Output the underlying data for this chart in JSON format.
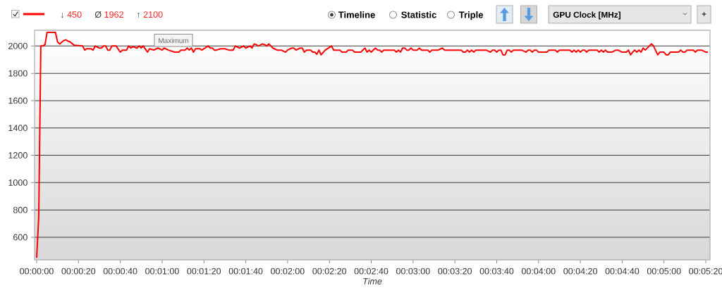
{
  "chart_data": {
    "type": "line",
    "title": "GPU Clock [MHz]",
    "xlabel": "Time",
    "annotations": [
      "↓ 450",
      "Ø 1962",
      "↑ 2100",
      "Timeline",
      "Statistic",
      "Triple",
      "+",
      "Maximum"
    ],
    "x": [
      0,
      1,
      2,
      3,
      4,
      5,
      9,
      10,
      11,
      13,
      14,
      15,
      16,
      18,
      22,
      23,
      24,
      26,
      27,
      28,
      30,
      31,
      32,
      33,
      34,
      35,
      36,
      38,
      40,
      41,
      43,
      44,
      45,
      46,
      48,
      49,
      50,
      51,
      53,
      54,
      56,
      58,
      60,
      61,
      63,
      66,
      68,
      69,
      71,
      72,
      73,
      74,
      75,
      76,
      78,
      79,
      80,
      82,
      83,
      84,
      85,
      86,
      88,
      90,
      92,
      94,
      95,
      97,
      99,
      100,
      102,
      103,
      104,
      105,
      106,
      108,
      109,
      110,
      111,
      113,
      115,
      117,
      119,
      120,
      122,
      123,
      124,
      126,
      127,
      128,
      129,
      131,
      132,
      133,
      134,
      135,
      136,
      138,
      141,
      142,
      145,
      146,
      148,
      149,
      151,
      152,
      155,
      157,
      158,
      159,
      160,
      162,
      163,
      164,
      165,
      166,
      171,
      172,
      173,
      174,
      175,
      176,
      177,
      178,
      179,
      180,
      182,
      183,
      184,
      187,
      188,
      189,
      192,
      194,
      195,
      203,
      204,
      205,
      206,
      207,
      208,
      209,
      210,
      215,
      217,
      218,
      219,
      220,
      221,
      222,
      223,
      224,
      225,
      226,
      227,
      228,
      232,
      234,
      235,
      236,
      237,
      238,
      239,
      240,
      244,
      245,
      248,
      249,
      250,
      255,
      256,
      257,
      258,
      259,
      260,
      261,
      262,
      263,
      264,
      268,
      269,
      270,
      271,
      272,
      273,
      275,
      277,
      278,
      280,
      282,
      283,
      284,
      285,
      286,
      287,
      288,
      289,
      290,
      291,
      294,
      295,
      297,
      298,
      300,
      301,
      302,
      303,
      307,
      308,
      309,
      310,
      311,
      314,
      315,
      316,
      318,
      320,
      321
    ],
    "series": [
      {
        "color": "#ff0000",
        "values": [
          450,
          750,
          2000,
          2000,
          2010,
          2100,
          2100,
          2030,
          2015,
          2040,
          2045,
          2035,
          2030,
          2005,
          2000,
          1970,
          1980,
          1980,
          1970,
          2000,
          1985,
          1985,
          2000,
          2000,
          1970,
          1970,
          2000,
          2000,
          1955,
          1970,
          1970,
          2000,
          1985,
          1995,
          1985,
          2000,
          1985,
          2000,
          1955,
          1980,
          1970,
          1985,
          1970,
          1985,
          1970,
          1955,
          1955,
          1970,
          1970,
          1985,
          1970,
          1985,
          1955,
          1980,
          1980,
          1970,
          1980,
          2000,
          1985,
          1985,
          1970,
          1970,
          1980,
          1980,
          1970,
          1970,
          2000,
          1985,
          2000,
          1985,
          2000,
          1985,
          2015,
          2010,
          2000,
          2015,
          2010,
          2000,
          2015,
          1985,
          1970,
          1970,
          1955,
          1970,
          1985,
          1985,
          1970,
          1985,
          1985,
          1955,
          1970,
          1970,
          1955,
          1955,
          1940,
          1970,
          1935,
          1970,
          2000,
          1970,
          1970,
          1955,
          1955,
          1970,
          1970,
          1955,
          1955,
          1985,
          1955,
          1970,
          1955,
          1985,
          1970,
          1970,
          1955,
          1970,
          1970,
          1955,
          1970,
          1955,
          1985,
          1985,
          1970,
          1970,
          1985,
          1970,
          1970,
          1985,
          1970,
          1970,
          1955,
          1970,
          1970,
          1985,
          1970,
          1970,
          1955,
          1955,
          1970,
          1955,
          1970,
          1955,
          1970,
          1970,
          1955,
          1970,
          1970,
          1955,
          1970,
          1970,
          1935,
          1935,
          1970,
          1970,
          1955,
          1970,
          1970,
          1955,
          1970,
          1970,
          1955,
          1970,
          1970,
          1955,
          1955,
          1970,
          1970,
          1955,
          1970,
          1970,
          1955,
          1970,
          1955,
          1970,
          1955,
          1970,
          1970,
          1955,
          1970,
          1970,
          1955,
          1970,
          1955,
          1970,
          1955,
          1955,
          1970,
          1970,
          1955,
          1955,
          1970,
          1935,
          1955,
          1970,
          1955,
          1970,
          1955,
          1985,
          1970,
          2015,
          2000,
          1935,
          1955,
          1955,
          1935,
          1935,
          1955,
          1955,
          1970,
          1955,
          1955,
          1970,
          1970,
          1955,
          1970,
          1970,
          1955,
          1955
        ]
      }
    ],
    "xlim": [
      -1,
      322
    ],
    "ylim": [
      435,
      2115
    ],
    "xticks": [
      {
        "value": 0,
        "label": "00:00:00"
      },
      {
        "value": 20,
        "label": "00:00:20"
      },
      {
        "value": 40,
        "label": "00:00:40"
      },
      {
        "value": 60,
        "label": "00:01:00"
      },
      {
        "value": 80,
        "label": "00:01:20"
      },
      {
        "value": 100,
        "label": "00:01:40"
      },
      {
        "value": 120,
        "label": "00:02:00"
      },
      {
        "value": 140,
        "label": "00:02:20"
      },
      {
        "value": 160,
        "label": "00:02:40"
      },
      {
        "value": 180,
        "label": "00:03:00"
      },
      {
        "value": 200,
        "label": "00:03:20"
      },
      {
        "value": 220,
        "label": "00:03:40"
      },
      {
        "value": 240,
        "label": "00:04:00"
      },
      {
        "value": 260,
        "label": "00:04:20"
      },
      {
        "value": 280,
        "label": "00:04:40"
      },
      {
        "value": 300,
        "label": "00:05:00"
      },
      {
        "value": 320,
        "label": "00:05:20"
      }
    ],
    "yticks": [
      600,
      800,
      1000,
      1200,
      1400,
      1600,
      1800,
      2000
    ],
    "grid": "y",
    "marker": "none",
    "line_style": "solid"
  }
}
